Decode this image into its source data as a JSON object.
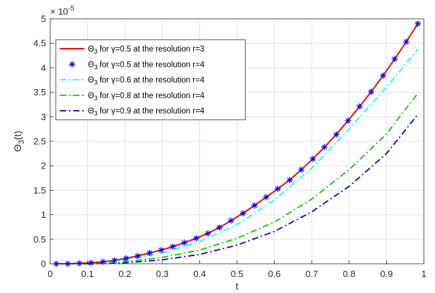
{
  "chart_data": {
    "type": "line",
    "xlabel": "t",
    "ylabel_main": "Θ",
    "ylabel_sub": "3",
    "ylabel_tail": "(t)",
    "exponent_base": "× 10",
    "exponent_power": "-5",
    "xlim": [
      0,
      1
    ],
    "ylim": [
      0,
      5
    ],
    "x_ticks": [
      "0",
      "0.1",
      "0.2",
      "0.3",
      "0.4",
      "0.5",
      "0.6",
      "0.7",
      "0.8",
      "0.9",
      "1"
    ],
    "y_ticks": [
      "0",
      "0.5",
      "1",
      "1.5",
      "2",
      "2.5",
      "3",
      "3.5",
      "4",
      "4.5",
      "5"
    ],
    "grid": true,
    "legend_location": "top-left",
    "series": [
      {
        "name": "Θ3 for γ=0.5 at the resolution r=3",
        "legend_prefix": "Θ",
        "legend_sub": "3",
        "legend_for": "for",
        "legend_symbol": "γ",
        "legend_rest": "=0.5 at the resolution r=3",
        "color": "#ff0000",
        "style": "solid",
        "marker": "none",
        "x": [
          0.016,
          0.047,
          0.078,
          0.109,
          0.141,
          0.172,
          0.203,
          0.234,
          0.266,
          0.297,
          0.328,
          0.359,
          0.391,
          0.422,
          0.453,
          0.484,
          0.516,
          0.547,
          0.578,
          0.609,
          0.641,
          0.672,
          0.703,
          0.734,
          0.766,
          0.797,
          0.828,
          0.859,
          0.891,
          0.922,
          0.953,
          0.984
        ],
        "y": [
          0.0,
          0.0,
          0.01,
          0.02,
          0.04,
          0.07,
          0.11,
          0.16,
          0.22,
          0.28,
          0.35,
          0.43,
          0.52,
          0.62,
          0.74,
          0.88,
          1.03,
          1.19,
          1.36,
          1.53,
          1.71,
          1.92,
          2.14,
          2.38,
          2.64,
          2.92,
          3.21,
          3.51,
          3.84,
          4.18,
          4.53,
          4.9
        ]
      },
      {
        "name": "Θ3 for γ=0.5 at the resolution r=4",
        "legend_prefix": "Θ",
        "legend_sub": "3",
        "legend_for": "for",
        "legend_symbol": "γ",
        "legend_rest": "=0.5 at the resolution r=4",
        "color": "#0000ff",
        "style": "none",
        "marker": "asterisk",
        "x": [
          0.016,
          0.047,
          0.078,
          0.109,
          0.141,
          0.172,
          0.203,
          0.234,
          0.266,
          0.297,
          0.328,
          0.359,
          0.391,
          0.422,
          0.453,
          0.484,
          0.516,
          0.547,
          0.578,
          0.609,
          0.641,
          0.672,
          0.703,
          0.734,
          0.766,
          0.797,
          0.828,
          0.859,
          0.891,
          0.922,
          0.953,
          0.984
        ],
        "y": [
          0.0,
          0.0,
          0.01,
          0.02,
          0.04,
          0.07,
          0.11,
          0.16,
          0.22,
          0.28,
          0.35,
          0.43,
          0.52,
          0.62,
          0.74,
          0.88,
          1.03,
          1.19,
          1.36,
          1.53,
          1.71,
          1.92,
          2.14,
          2.38,
          2.64,
          2.92,
          3.21,
          3.51,
          3.84,
          4.18,
          4.53,
          4.9
        ]
      },
      {
        "name": "Θ3 for γ=0.6 at the resolution r=4",
        "legend_prefix": "Θ",
        "legend_sub": "3",
        "legend_for": "for",
        "legend_symbol": "γ",
        "legend_rest": "=0.6 at the resolution r=4",
        "color": "#00ffff",
        "style": "dashdot",
        "marker": "none",
        "x": [
          0.016,
          0.1,
          0.2,
          0.3,
          0.4,
          0.5,
          0.6,
          0.7,
          0.8,
          0.9,
          0.984
        ],
        "y": [
          0.0,
          0.01,
          0.08,
          0.22,
          0.45,
          0.8,
          1.3,
          1.95,
          2.75,
          3.6,
          4.38
        ]
      },
      {
        "name": "Θ3 for γ=0.8 at the resolution r=4",
        "legend_prefix": "Θ",
        "legend_sub": "3",
        "legend_for": "for",
        "legend_symbol": "γ",
        "legend_rest": "=0.8 at the resolution r=4",
        "color": "#00cc00",
        "style": "dashdot",
        "marker": "none",
        "x": [
          0.016,
          0.1,
          0.2,
          0.3,
          0.4,
          0.5,
          0.6,
          0.7,
          0.8,
          0.9,
          0.984
        ],
        "y": [
          0.0,
          0.0,
          0.04,
          0.13,
          0.28,
          0.52,
          0.85,
          1.32,
          1.92,
          2.65,
          3.48
        ]
      },
      {
        "name": "Θ3 for γ=0.9 at the resolution r=4",
        "legend_prefix": "Θ",
        "legend_sub": "3",
        "legend_for": "for",
        "legend_symbol": "γ",
        "legend_rest": "=0.9 at the resolution r=4",
        "color": "#0000cc",
        "style": "dashdot",
        "marker": "none",
        "x": [
          0.016,
          0.1,
          0.2,
          0.3,
          0.4,
          0.5,
          0.6,
          0.7,
          0.8,
          0.9,
          0.984
        ],
        "y": [
          0.0,
          0.0,
          0.02,
          0.08,
          0.19,
          0.38,
          0.66,
          1.06,
          1.58,
          2.25,
          3.05
        ]
      }
    ]
  }
}
